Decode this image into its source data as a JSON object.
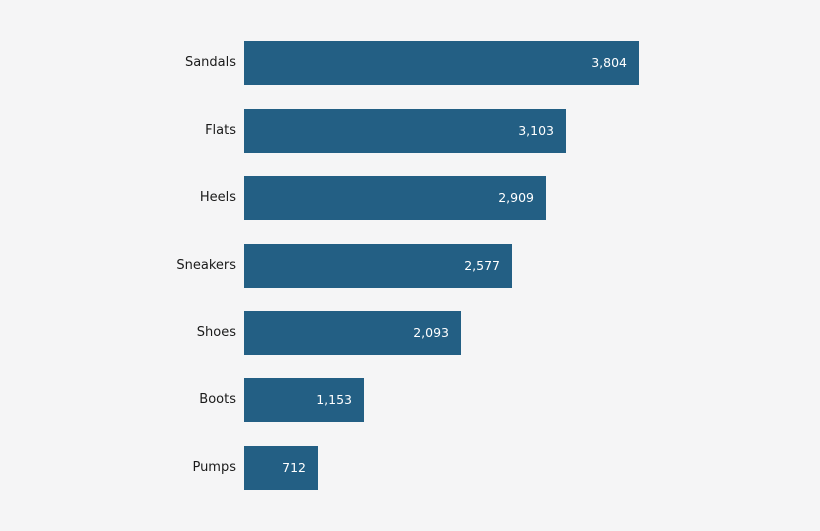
{
  "chart_data": {
    "type": "bar",
    "orientation": "horizontal",
    "title": "",
    "xlabel": "",
    "ylabel": "",
    "categories": [
      "Sandals",
      "Flats",
      "Heels",
      "Sneakers",
      "Shoes",
      "Boots",
      "Pumps"
    ],
    "values": [
      3804,
      3103,
      2909,
      2577,
      2093,
      1153,
      712
    ],
    "value_labels": [
      "3,804",
      "3,103",
      "2,909",
      "2,577",
      "2,093",
      "1,153",
      "712"
    ],
    "xlim": [
      0,
      3804
    ],
    "grid": false,
    "legend": null,
    "data_labels": "inside-end",
    "colors": {
      "bar": "#235f84",
      "background": "#f5f5f6",
      "label_text": "#ffffff",
      "category_text": "#1a1a1a"
    }
  }
}
